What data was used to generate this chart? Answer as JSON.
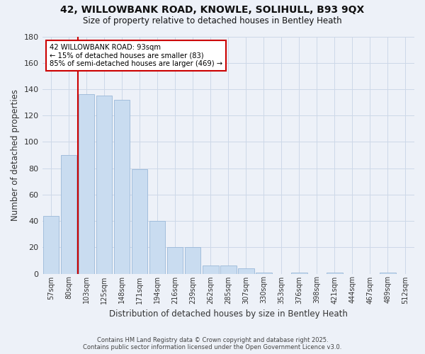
{
  "title1": "42, WILLOWBANK ROAD, KNOWLE, SOLIHULL, B93 9QX",
  "title2": "Size of property relative to detached houses in Bentley Heath",
  "xlabel": "Distribution of detached houses by size in Bentley Heath",
  "ylabel": "Number of detached properties",
  "categories": [
    "57sqm",
    "80sqm",
    "103sqm",
    "125sqm",
    "148sqm",
    "171sqm",
    "194sqm",
    "216sqm",
    "239sqm",
    "262sqm",
    "285sqm",
    "307sqm",
    "330sqm",
    "353sqm",
    "376sqm",
    "398sqm",
    "421sqm",
    "444sqm",
    "467sqm",
    "489sqm",
    "512sqm"
  ],
  "values": [
    44,
    90,
    136,
    135,
    132,
    79,
    40,
    20,
    20,
    6,
    6,
    4,
    1,
    0,
    1,
    0,
    1,
    0,
    0,
    1,
    0
  ],
  "bar_color": "#c9dcf0",
  "bar_edge_color": "#9ab8d8",
  "grid_color": "#cdd8e8",
  "background_color": "#edf1f8",
  "annotation_text": "42 WILLOWBANK ROAD: 93sqm\n← 15% of detached houses are smaller (83)\n85% of semi-detached houses are larger (469) →",
  "vline_x": 1.5,
  "vline_color": "#cc0000",
  "ylim": [
    0,
    180
  ],
  "yticks": [
    0,
    20,
    40,
    60,
    80,
    100,
    120,
    140,
    160,
    180
  ],
  "footnote": "Contains HM Land Registry data © Crown copyright and database right 2025.\nContains public sector information licensed under the Open Government Licence v3.0."
}
